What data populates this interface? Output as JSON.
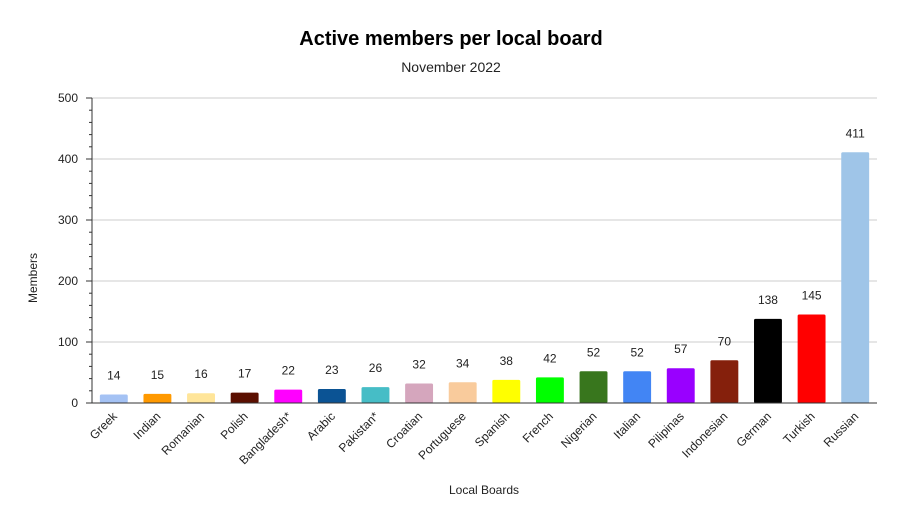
{
  "chart_data": {
    "type": "bar",
    "title": "Active members per local board",
    "subtitle": "November 2022",
    "xlabel": "Local Boards",
    "ylabel": "Members",
    "ylim": [
      0,
      500
    ],
    "yticks": [
      0,
      100,
      200,
      300,
      400,
      500
    ],
    "grid": true,
    "legend": "none",
    "categories": [
      "Greek",
      "Indian",
      "Romanian",
      "Polish",
      "Bangladesh*",
      "Arabic",
      "Pakistan*",
      "Croatian",
      "Portuguese",
      "Spanish",
      "French",
      "Nigerian",
      "Italian",
      "Pilipinas",
      "Indonesian",
      "German",
      "Turkish",
      "Russian"
    ],
    "values": [
      14,
      15,
      16,
      17,
      22,
      23,
      26,
      32,
      34,
      38,
      42,
      52,
      52,
      57,
      70,
      138,
      145,
      411
    ],
    "colors": [
      "#a4c2f4",
      "#ff9900",
      "#ffe599",
      "#5b0f00",
      "#ff00ff",
      "#0b5394",
      "#46bdc6",
      "#d5a6bd",
      "#f9cb9c",
      "#ffff00",
      "#00ff00",
      "#38761d",
      "#4285f4",
      "#9900ff",
      "#85200c",
      "#000000",
      "#ff0000",
      "#9fc5e8"
    ]
  }
}
